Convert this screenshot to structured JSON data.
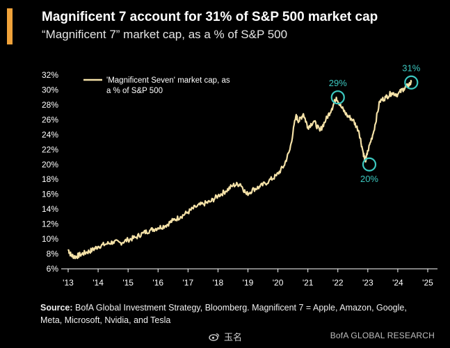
{
  "header": {
    "title": "Magnificent 7 account for 31% of S&P 500 market cap",
    "subtitle": "“Magnificent 7” market cap, as a % of S&P 500",
    "accent_color": "#f0a23a"
  },
  "footer": {
    "source_label": "Source:",
    "source_text": "BofA Global Investment Strategy, Bloomberg. Magnificent 7 = Apple, Amazon, Google, Meta, Microsoft, Nvidia, and Tesla",
    "brand": "BofA GLOBAL RESEARCH",
    "watermark_text": "玉名"
  },
  "chart_data": {
    "type": "line",
    "xlabel": "",
    "ylabel": "",
    "xlim": [
      2013,
      2025
    ],
    "ylim": [
      6,
      32
    ],
    "x_ticks": [
      2013,
      2014,
      2015,
      2016,
      2017,
      2018,
      2019,
      2020,
      2021,
      2022,
      2023,
      2024,
      2025
    ],
    "x_tick_labels": [
      "'13",
      "'14",
      "'15",
      "'16",
      "'17",
      "'18",
      "'19",
      "'20",
      "'21",
      "'22",
      "'23",
      "'24",
      "'25"
    ],
    "y_ticks": [
      6,
      8,
      10,
      12,
      14,
      16,
      18,
      20,
      22,
      24,
      26,
      28,
      30,
      32
    ],
    "y_tick_labels": [
      "6%",
      "8%",
      "10%",
      "12%",
      "14%",
      "16%",
      "18%",
      "20%",
      "22%",
      "24%",
      "26%",
      "28%",
      "30%",
      "32%"
    ],
    "legend": {
      "label": "'Magnificent Seven' market cap, as a % of S&P 500",
      "placement": "top-left"
    },
    "line_color": "#f5e2a8",
    "highlight_color": "#3cc8c0",
    "series": [
      {
        "name": "'Magnificent Seven' market cap, as a % of S&P 500",
        "x": [
          2013.0,
          2013.1,
          2013.25,
          2013.4,
          2013.6,
          2013.8,
          2014.0,
          2014.25,
          2014.5,
          2014.75,
          2015.0,
          2015.25,
          2015.5,
          2015.75,
          2016.0,
          2016.25,
          2016.5,
          2016.75,
          2017.0,
          2017.25,
          2017.5,
          2017.75,
          2018.0,
          2018.25,
          2018.5,
          2018.75,
          2018.95,
          2019.2,
          2019.4,
          2019.7,
          2019.95,
          2020.2,
          2020.4,
          2020.6,
          2020.7,
          2020.85,
          2021.0,
          2021.2,
          2021.4,
          2021.6,
          2021.8,
          2021.95,
          2022.1,
          2022.3,
          2022.5,
          2022.7,
          2022.85,
          2022.92,
          2023.0,
          2023.2,
          2023.4,
          2023.6,
          2023.8,
          2024.0,
          2024.2,
          2024.35,
          2024.45
        ],
        "values": [
          8.6,
          7.8,
          7.6,
          7.9,
          8.2,
          8.5,
          9.0,
          9.3,
          9.6,
          9.5,
          9.9,
          10.2,
          10.8,
          11.2,
          11.5,
          11.8,
          12.5,
          13.0,
          13.6,
          14.3,
          14.7,
          15.0,
          15.8,
          16.4,
          17.2,
          17.4,
          16.0,
          16.7,
          17.0,
          17.8,
          18.5,
          19.8,
          22.0,
          26.5,
          25.8,
          26.8,
          25.0,
          25.8,
          24.5,
          26.0,
          27.5,
          29.0,
          27.8,
          26.6,
          26.0,
          24.5,
          21.5,
          20.4,
          21.8,
          24.5,
          28.5,
          29.0,
          29.6,
          29.4,
          30.2,
          30.6,
          31.0
        ]
      }
    ],
    "annotations": [
      {
        "x": 2022.0,
        "y": 29,
        "label": "29%",
        "label_position": "above"
      },
      {
        "x": 2023.05,
        "y": 20,
        "label": "20%",
        "label_position": "below"
      },
      {
        "x": 2024.45,
        "y": 31,
        "label": "31%",
        "label_position": "above"
      }
    ]
  }
}
